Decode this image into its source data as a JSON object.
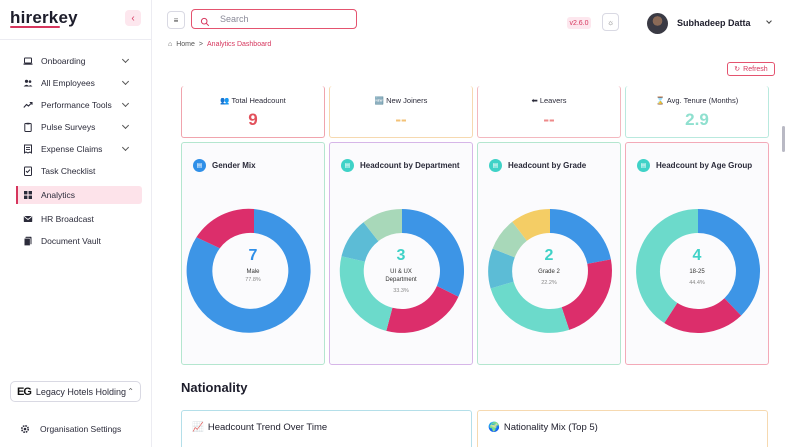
{
  "app": {
    "logo_text": "hirerkey",
    "version": "v2.6.0"
  },
  "sidebar": {
    "items": [
      {
        "label": "Onboarding",
        "icon": "laptop-icon",
        "has_chevron": true
      },
      {
        "label": "All Employees",
        "icon": "users-icon",
        "has_chevron": true
      },
      {
        "label": "Performance Tools",
        "icon": "trend-icon",
        "has_chevron": true
      },
      {
        "label": "Pulse Surveys",
        "icon": "clipboard-icon",
        "has_chevron": true
      },
      {
        "label": "Expense Claims",
        "icon": "receipt-icon",
        "has_chevron": true
      },
      {
        "label": "Task Checklist",
        "icon": "checklist-icon",
        "has_chevron": false
      },
      {
        "label": "Analytics",
        "icon": "grid-icon",
        "has_chevron": false,
        "active": true
      },
      {
        "label": "HR Broadcast",
        "icon": "mail-icon",
        "has_chevron": false
      },
      {
        "label": "Document Vault",
        "icon": "document-icon",
        "has_chevron": false
      }
    ],
    "org_logo": "EG",
    "org_name": "Legacy Hotels Holding",
    "org_settings_label": "Organisation Settings"
  },
  "topbar": {
    "search_placeholder": "Search",
    "user_name": "Subhadeep Datta"
  },
  "breadcrumb": {
    "home": "Home",
    "separator": ">",
    "current": "Analytics Dashboard"
  },
  "refresh_label": "Refresh",
  "stats": [
    {
      "label": "Total Headcount",
      "icon": "people-icon",
      "value": "9",
      "color": "#e2505b",
      "border": "#f0a4ad"
    },
    {
      "label": "New Joiners",
      "icon": "new-icon",
      "value": "--",
      "color": "#f3c277",
      "border": "#f6d9b0"
    },
    {
      "label": "Leavers",
      "icon": "exit-icon",
      "value": "--",
      "color": "#ee8a8a",
      "border": "#f3b8bf"
    },
    {
      "label": "Avg. Tenure (Months)",
      "icon": "hourglass-icon",
      "value": "2.9",
      "color": "#8fe0cf",
      "border": "#b9e9de"
    }
  ],
  "charts": [
    {
      "title": "Gender Mix",
      "center_value": "7",
      "center_label": "Male",
      "center_pct": "77.8%",
      "value_color": "#2f8fe8",
      "border": "#b4e6cf",
      "icon_color": "#2f8fe8"
    },
    {
      "title": "Headcount by Department",
      "center_value": "3",
      "center_label": "UI & UX Department",
      "center_pct": "33.3%",
      "value_color": "#3fd2c7",
      "border": "#d6b6e8",
      "icon_color": "#3fd2c7"
    },
    {
      "title": "Headcount by Grade",
      "center_value": "2",
      "center_label": "Grade 2",
      "center_pct": "22.2%",
      "value_color": "#3fd2c7",
      "border": "#b4e6cf",
      "icon_color": "#3fd2c7"
    },
    {
      "title": "Headcount by Age Group",
      "center_value": "4",
      "center_label": "18-25",
      "center_pct": "44.4%",
      "value_color": "#3fd2c7",
      "border": "#f3aab8",
      "icon_color": "#3fd2c7"
    }
  ],
  "section_title": "Nationality",
  "bottom_cards": [
    {
      "title": "Headcount Trend Over Time",
      "icon": "chart-icon",
      "border": "#b4dfe9"
    },
    {
      "title": "Nationality Mix (Top 5)",
      "icon": "globe-icon",
      "border": "#f6d9b0"
    }
  ]
}
